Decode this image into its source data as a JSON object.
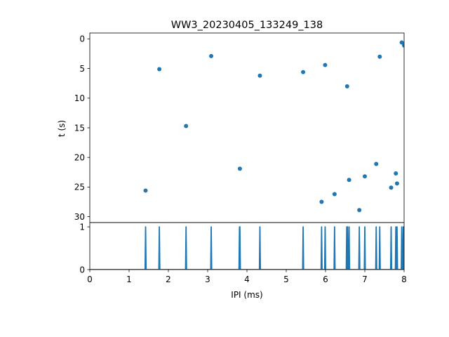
{
  "chart_data": [
    {
      "type": "scatter",
      "title": "WW3_20230405_133249_138",
      "xlabel": "",
      "ylabel": "t (s)",
      "xlim": [
        0,
        8
      ],
      "ylim": [
        31,
        -1
      ],
      "y_inverted": true,
      "yticks": [
        "0",
        "5",
        "10",
        "15",
        "20",
        "25",
        "30"
      ],
      "color": "#1f77b4",
      "points": [
        {
          "x": 1.42,
          "y": 25.6
        },
        {
          "x": 1.77,
          "y": 5.1
        },
        {
          "x": 2.45,
          "y": 14.7
        },
        {
          "x": 3.09,
          "y": 2.9
        },
        {
          "x": 3.82,
          "y": 21.9
        },
        {
          "x": 4.33,
          "y": 6.2
        },
        {
          "x": 5.43,
          "y": 5.6
        },
        {
          "x": 5.9,
          "y": 27.5
        },
        {
          "x": 5.99,
          "y": 4.4
        },
        {
          "x": 6.23,
          "y": 26.2
        },
        {
          "x": 6.55,
          "y": 8.0
        },
        {
          "x": 6.6,
          "y": 23.8
        },
        {
          "x": 6.86,
          "y": 28.9
        },
        {
          "x": 7.0,
          "y": 23.2
        },
        {
          "x": 7.29,
          "y": 21.1
        },
        {
          "x": 7.38,
          "y": 3.0
        },
        {
          "x": 7.67,
          "y": 25.1
        },
        {
          "x": 7.79,
          "y": 22.7
        },
        {
          "x": 7.82,
          "y": 24.4
        },
        {
          "x": 7.94,
          "y": 0.6
        },
        {
          "x": 8.0,
          "y": 1.1
        }
      ]
    },
    {
      "type": "line",
      "title": "",
      "xlabel": "IPI (ms)",
      "ylabel": "",
      "xlim": [
        0,
        8
      ],
      "ylim": [
        0,
        1.1
      ],
      "xticks": [
        "0",
        "1",
        "2",
        "3",
        "4",
        "5",
        "6",
        "7",
        "8"
      ],
      "yticks": [
        "0",
        "1"
      ],
      "color": "#1f77b4",
      "spikes_x": [
        1.42,
        1.77,
        2.45,
        3.09,
        3.81,
        3.82,
        4.33,
        5.43,
        5.9,
        5.99,
        6.23,
        6.54,
        6.56,
        6.6,
        6.86,
        7.0,
        7.29,
        7.38,
        7.67,
        7.79,
        7.82,
        7.94,
        7.98,
        8.0
      ],
      "spike_height": 1
    }
  ]
}
